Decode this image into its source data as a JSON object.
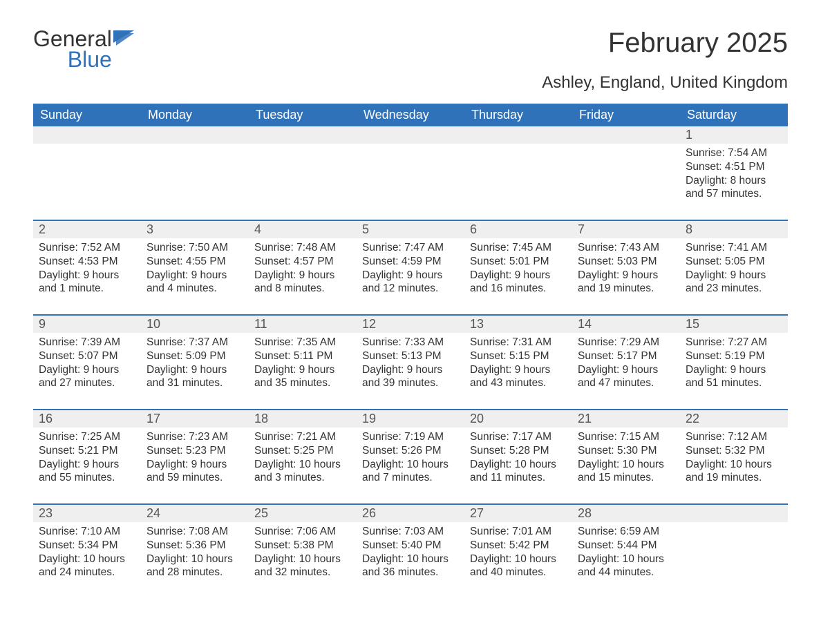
{
  "brand": {
    "name_line1": "General",
    "name_line2": "Blue"
  },
  "title": "February 2025",
  "subtitle": "Ashley, England, United Kingdom",
  "colors": {
    "header_bg": "#2f72b9",
    "header_text": "#ffffff",
    "rule": "#2f72b9",
    "daynum_band_bg": "#efefef",
    "body_text": "#333333",
    "page_bg": "#ffffff",
    "logo_gray": "#333333",
    "logo_blue": "#2f72b9"
  },
  "typography": {
    "title_fontsize_pt": 30,
    "subtitle_fontsize_pt": 18,
    "dayheader_fontsize_pt": 14,
    "daynum_fontsize_pt": 14,
    "body_fontsize_pt": 12
  },
  "day_headers": [
    "Sunday",
    "Monday",
    "Tuesday",
    "Wednesday",
    "Thursday",
    "Friday",
    "Saturday"
  ],
  "weeks": [
    [
      {
        "num": "",
        "sunrise": "",
        "sunset": "",
        "daylight1": "",
        "daylight2": ""
      },
      {
        "num": "",
        "sunrise": "",
        "sunset": "",
        "daylight1": "",
        "daylight2": ""
      },
      {
        "num": "",
        "sunrise": "",
        "sunset": "",
        "daylight1": "",
        "daylight2": ""
      },
      {
        "num": "",
        "sunrise": "",
        "sunset": "",
        "daylight1": "",
        "daylight2": ""
      },
      {
        "num": "",
        "sunrise": "",
        "sunset": "",
        "daylight1": "",
        "daylight2": ""
      },
      {
        "num": "",
        "sunrise": "",
        "sunset": "",
        "daylight1": "",
        "daylight2": ""
      },
      {
        "num": "1",
        "sunrise": "Sunrise: 7:54 AM",
        "sunset": "Sunset: 4:51 PM",
        "daylight1": "Daylight: 8 hours",
        "daylight2": "and 57 minutes."
      }
    ],
    [
      {
        "num": "2",
        "sunrise": "Sunrise: 7:52 AM",
        "sunset": "Sunset: 4:53 PM",
        "daylight1": "Daylight: 9 hours",
        "daylight2": "and 1 minute."
      },
      {
        "num": "3",
        "sunrise": "Sunrise: 7:50 AM",
        "sunset": "Sunset: 4:55 PM",
        "daylight1": "Daylight: 9 hours",
        "daylight2": "and 4 minutes."
      },
      {
        "num": "4",
        "sunrise": "Sunrise: 7:48 AM",
        "sunset": "Sunset: 4:57 PM",
        "daylight1": "Daylight: 9 hours",
        "daylight2": "and 8 minutes."
      },
      {
        "num": "5",
        "sunrise": "Sunrise: 7:47 AM",
        "sunset": "Sunset: 4:59 PM",
        "daylight1": "Daylight: 9 hours",
        "daylight2": "and 12 minutes."
      },
      {
        "num": "6",
        "sunrise": "Sunrise: 7:45 AM",
        "sunset": "Sunset: 5:01 PM",
        "daylight1": "Daylight: 9 hours",
        "daylight2": "and 16 minutes."
      },
      {
        "num": "7",
        "sunrise": "Sunrise: 7:43 AM",
        "sunset": "Sunset: 5:03 PM",
        "daylight1": "Daylight: 9 hours",
        "daylight2": "and 19 minutes."
      },
      {
        "num": "8",
        "sunrise": "Sunrise: 7:41 AM",
        "sunset": "Sunset: 5:05 PM",
        "daylight1": "Daylight: 9 hours",
        "daylight2": "and 23 minutes."
      }
    ],
    [
      {
        "num": "9",
        "sunrise": "Sunrise: 7:39 AM",
        "sunset": "Sunset: 5:07 PM",
        "daylight1": "Daylight: 9 hours",
        "daylight2": "and 27 minutes."
      },
      {
        "num": "10",
        "sunrise": "Sunrise: 7:37 AM",
        "sunset": "Sunset: 5:09 PM",
        "daylight1": "Daylight: 9 hours",
        "daylight2": "and 31 minutes."
      },
      {
        "num": "11",
        "sunrise": "Sunrise: 7:35 AM",
        "sunset": "Sunset: 5:11 PM",
        "daylight1": "Daylight: 9 hours",
        "daylight2": "and 35 minutes."
      },
      {
        "num": "12",
        "sunrise": "Sunrise: 7:33 AM",
        "sunset": "Sunset: 5:13 PM",
        "daylight1": "Daylight: 9 hours",
        "daylight2": "and 39 minutes."
      },
      {
        "num": "13",
        "sunrise": "Sunrise: 7:31 AM",
        "sunset": "Sunset: 5:15 PM",
        "daylight1": "Daylight: 9 hours",
        "daylight2": "and 43 minutes."
      },
      {
        "num": "14",
        "sunrise": "Sunrise: 7:29 AM",
        "sunset": "Sunset: 5:17 PM",
        "daylight1": "Daylight: 9 hours",
        "daylight2": "and 47 minutes."
      },
      {
        "num": "15",
        "sunrise": "Sunrise: 7:27 AM",
        "sunset": "Sunset: 5:19 PM",
        "daylight1": "Daylight: 9 hours",
        "daylight2": "and 51 minutes."
      }
    ],
    [
      {
        "num": "16",
        "sunrise": "Sunrise: 7:25 AM",
        "sunset": "Sunset: 5:21 PM",
        "daylight1": "Daylight: 9 hours",
        "daylight2": "and 55 minutes."
      },
      {
        "num": "17",
        "sunrise": "Sunrise: 7:23 AM",
        "sunset": "Sunset: 5:23 PM",
        "daylight1": "Daylight: 9 hours",
        "daylight2": "and 59 minutes."
      },
      {
        "num": "18",
        "sunrise": "Sunrise: 7:21 AM",
        "sunset": "Sunset: 5:25 PM",
        "daylight1": "Daylight: 10 hours",
        "daylight2": "and 3 minutes."
      },
      {
        "num": "19",
        "sunrise": "Sunrise: 7:19 AM",
        "sunset": "Sunset: 5:26 PM",
        "daylight1": "Daylight: 10 hours",
        "daylight2": "and 7 minutes."
      },
      {
        "num": "20",
        "sunrise": "Sunrise: 7:17 AM",
        "sunset": "Sunset: 5:28 PM",
        "daylight1": "Daylight: 10 hours",
        "daylight2": "and 11 minutes."
      },
      {
        "num": "21",
        "sunrise": "Sunrise: 7:15 AM",
        "sunset": "Sunset: 5:30 PM",
        "daylight1": "Daylight: 10 hours",
        "daylight2": "and 15 minutes."
      },
      {
        "num": "22",
        "sunrise": "Sunrise: 7:12 AM",
        "sunset": "Sunset: 5:32 PM",
        "daylight1": "Daylight: 10 hours",
        "daylight2": "and 19 minutes."
      }
    ],
    [
      {
        "num": "23",
        "sunrise": "Sunrise: 7:10 AM",
        "sunset": "Sunset: 5:34 PM",
        "daylight1": "Daylight: 10 hours",
        "daylight2": "and 24 minutes."
      },
      {
        "num": "24",
        "sunrise": "Sunrise: 7:08 AM",
        "sunset": "Sunset: 5:36 PM",
        "daylight1": "Daylight: 10 hours",
        "daylight2": "and 28 minutes."
      },
      {
        "num": "25",
        "sunrise": "Sunrise: 7:06 AM",
        "sunset": "Sunset: 5:38 PM",
        "daylight1": "Daylight: 10 hours",
        "daylight2": "and 32 minutes."
      },
      {
        "num": "26",
        "sunrise": "Sunrise: 7:03 AM",
        "sunset": "Sunset: 5:40 PM",
        "daylight1": "Daylight: 10 hours",
        "daylight2": "and 36 minutes."
      },
      {
        "num": "27",
        "sunrise": "Sunrise: 7:01 AM",
        "sunset": "Sunset: 5:42 PM",
        "daylight1": "Daylight: 10 hours",
        "daylight2": "and 40 minutes."
      },
      {
        "num": "28",
        "sunrise": "Sunrise: 6:59 AM",
        "sunset": "Sunset: 5:44 PM",
        "daylight1": "Daylight: 10 hours",
        "daylight2": "and 44 minutes."
      },
      {
        "num": "",
        "sunrise": "",
        "sunset": "",
        "daylight1": "",
        "daylight2": ""
      }
    ]
  ]
}
